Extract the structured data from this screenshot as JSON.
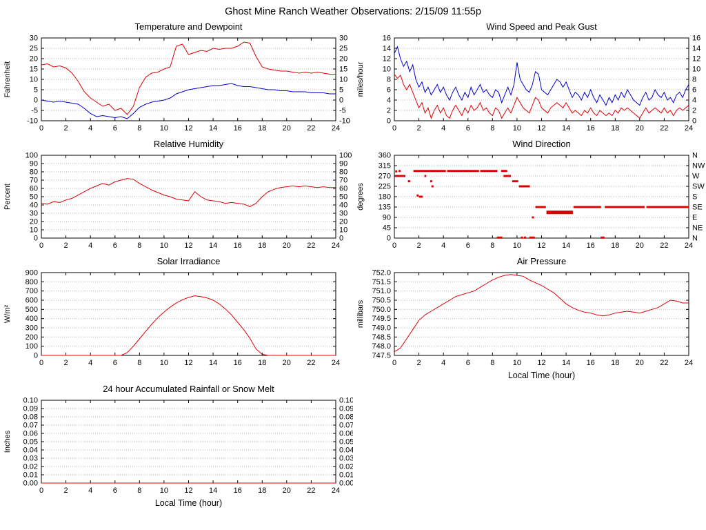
{
  "page_title": "Ghost Mine Ranch Weather Observations: 2/15/09 11:55p",
  "colors": {
    "red": "#dd0000",
    "blue": "#0000cc"
  },
  "chart_data": [
    {
      "id": "temperature_dewpoint",
      "type": "line",
      "title": "Temperature and Dewpoint",
      "ylabel": "Fahrenheit",
      "ylim": [
        -10,
        30
      ],
      "yticks": [
        -10,
        -5,
        0,
        5,
        10,
        15,
        20,
        25,
        30
      ],
      "xlim": [
        0,
        24
      ],
      "xticks": [
        0,
        2,
        4,
        6,
        8,
        10,
        12,
        14,
        16,
        18,
        20,
        22,
        24
      ],
      "right": "same",
      "series": [
        {
          "name": "temperature",
          "color": "#dd0000",
          "x0": 0,
          "dx": 0.5,
          "y": [
            17,
            17.5,
            16,
            16.5,
            15.5,
            13,
            9,
            4,
            1,
            -1,
            -3,
            -2,
            -5,
            -4,
            -7,
            -3,
            6,
            11,
            13,
            13.5,
            15,
            16,
            26,
            27,
            22,
            23,
            24,
            23.5,
            25,
            24.5,
            25,
            25,
            26,
            28,
            27.5,
            21,
            16,
            15,
            14.5,
            14,
            14,
            13.5,
            13,
            13.5,
            13,
            13.5,
            13,
            12.5,
            12.5
          ]
        },
        {
          "name": "dewpoint",
          "color": "#0000cc",
          "x0": 0,
          "dx": 0.5,
          "y": [
            0,
            -0.5,
            -1,
            -0.5,
            -1,
            -1.5,
            -2,
            -4,
            -6.5,
            -8,
            -7.5,
            -8,
            -8.5,
            -8,
            -9,
            -6.5,
            -3.5,
            -2,
            -1,
            -0.5,
            0,
            1,
            3,
            4,
            5,
            5.5,
            6,
            6.5,
            7,
            7,
            7.5,
            8,
            7,
            6.5,
            6.5,
            6,
            5.5,
            5,
            5,
            4.5,
            4.5,
            4,
            4,
            4,
            3.5,
            3.5,
            3.5,
            3,
            3
          ]
        }
      ]
    },
    {
      "id": "wind_speed_gust",
      "type": "line",
      "title": "Wind Speed and Peak Gust",
      "ylabel": "miles/hour",
      "ylim": [
        0,
        16
      ],
      "yticks": [
        0,
        2,
        4,
        6,
        8,
        10,
        12,
        14,
        16
      ],
      "xlim": [
        0,
        24
      ],
      "xticks": [
        0,
        2,
        4,
        6,
        8,
        10,
        12,
        14,
        16,
        18,
        20,
        22,
        24
      ],
      "right": "same",
      "series": [
        {
          "name": "peak_gust",
          "color": "#0000cc",
          "x0": 0,
          "dx": 0.25,
          "y": [
            13,
            14.3,
            12,
            10.5,
            11.5,
            9.5,
            10.8,
            8,
            6.5,
            7.5,
            5.5,
            6.5,
            5,
            6,
            7,
            5.5,
            6.5,
            5,
            4,
            5.5,
            6.5,
            5,
            4,
            5.5,
            4.5,
            6.5,
            5,
            6,
            7,
            5.5,
            6,
            5,
            4.5,
            6,
            5.5,
            3.5,
            5,
            6.5,
            5,
            7,
            11.3,
            8,
            7,
            6,
            5.5,
            7,
            9.5,
            9,
            6,
            5.5,
            5,
            6,
            7,
            8,
            7.5,
            6.5,
            7.5,
            6,
            4.5,
            5.5,
            5,
            4,
            5.5,
            4.5,
            6,
            4.5,
            3.5,
            5,
            4,
            3,
            4.5,
            3.5,
            5,
            4,
            5.5,
            4.5,
            6,
            5,
            4,
            3.5,
            3,
            4.5,
            5.5,
            4,
            4.5,
            6,
            5,
            4.5,
            5.5,
            4,
            4.5,
            3.5,
            5,
            5.5,
            4.5,
            6,
            7
          ]
        },
        {
          "name": "wind_speed",
          "color": "#dd0000",
          "x0": 0,
          "dx": 0.25,
          "y": [
            9,
            8.2,
            8.8,
            7,
            6,
            7,
            5.5,
            4,
            2.5,
            3.5,
            1.5,
            2.5,
            0.5,
            2,
            3,
            1.5,
            2.5,
            1,
            0.5,
            2,
            3,
            2,
            1,
            2.5,
            1.5,
            3,
            2,
            2.5,
            3.5,
            2,
            2.5,
            1.5,
            1,
            2.5,
            2,
            0.5,
            1.5,
            2.5,
            1.5,
            3,
            4.5,
            3.5,
            2.5,
            2,
            1.5,
            3,
            4.5,
            4,
            2.5,
            2,
            1.5,
            2.5,
            3,
            3.5,
            3,
            2.5,
            3.5,
            2.5,
            1.5,
            2,
            1.5,
            1,
            2,
            1.5,
            2.5,
            1.5,
            1,
            2,
            1.5,
            1,
            1.5,
            1,
            2,
            1.5,
            2.5,
            2,
            2.5,
            2,
            1.5,
            1,
            0.5,
            1.5,
            2.5,
            1.5,
            2,
            2.5,
            2,
            1.5,
            2.5,
            1.5,
            2,
            1,
            2,
            2.5,
            2,
            2.5,
            3
          ]
        }
      ]
    },
    {
      "id": "relative_humidity",
      "type": "line",
      "title": "Relative Humidity",
      "ylabel": "Percent",
      "ylim": [
        0,
        100
      ],
      "yticks": [
        0,
        10,
        20,
        30,
        40,
        50,
        60,
        70,
        80,
        90,
        100
      ],
      "xlim": [
        0,
        24
      ],
      "xticks": [
        0,
        2,
        4,
        6,
        8,
        10,
        12,
        14,
        16,
        18,
        20,
        22,
        24
      ],
      "right": "same",
      "series": [
        {
          "name": "humidity",
          "color": "#dd0000",
          "x0": 0,
          "dx": 0.5,
          "y": [
            42,
            41,
            44,
            43,
            46,
            48,
            52,
            56,
            60,
            63,
            66,
            64,
            68,
            70,
            72,
            71,
            66,
            62,
            58,
            55,
            52,
            50,
            47,
            46,
            45,
            56,
            50,
            46,
            45,
            44,
            42,
            43,
            42,
            41,
            38,
            42,
            50,
            56,
            59,
            61,
            62,
            63,
            62,
            63,
            62,
            61,
            62,
            61,
            61
          ]
        }
      ]
    },
    {
      "id": "wind_direction",
      "type": "scatter",
      "title": "Wind Direction",
      "ylabel": "degrees",
      "ylim": [
        0,
        360
      ],
      "yticks": [
        0,
        45,
        90,
        135,
        180,
        225,
        270,
        315,
        360
      ],
      "right_labels": [
        "N",
        "NE",
        "E",
        "SE",
        "S",
        "SW",
        "W",
        "NW",
        "N"
      ],
      "xlim": [
        0,
        24
      ],
      "xticks": [
        0,
        2,
        4,
        6,
        8,
        10,
        12,
        14,
        16,
        18,
        20,
        22,
        24
      ],
      "right": "compass",
      "marker_color": "#dd0000",
      "segments": [
        {
          "x1": 0.05,
          "x2": 0.9,
          "y": 270
        },
        {
          "x1": 0.35,
          "x2": 0.5,
          "y": 292
        },
        {
          "x1": 1.1,
          "x2": 1.3,
          "y": 247
        },
        {
          "x1": 1.55,
          "x2": 4.2,
          "y": 292
        },
        {
          "x1": 4.3,
          "x2": 6.9,
          "y": 292
        },
        {
          "x1": 7.0,
          "x2": 8.4,
          "y": 292
        },
        {
          "x1": 8.7,
          "x2": 9.2,
          "y": 292
        },
        {
          "x1": 2.0,
          "x2": 2.3,
          "y": 180
        },
        {
          "x1": 2.45,
          "x2": 2.6,
          "y": 270
        },
        {
          "x1": 8.35,
          "x2": 8.8,
          "y": 2
        },
        {
          "x1": 8.9,
          "x2": 9.5,
          "y": 270
        },
        {
          "x1": 9.6,
          "x2": 10.1,
          "y": 247
        },
        {
          "x1": 10.15,
          "x2": 11.05,
          "y": 225
        },
        {
          "x1": 11.0,
          "x2": 11.45,
          "y": 2
        },
        {
          "x1": 11.5,
          "x2": 12.35,
          "y": 135
        },
        {
          "x1": 12.4,
          "x2": 14.55,
          "y": 112,
          "w": 5
        },
        {
          "x1": 14.6,
          "x2": 16.85,
          "y": 135
        },
        {
          "x1": 17.15,
          "x2": 20.4,
          "y": 135
        },
        {
          "x1": 20.55,
          "x2": 24,
          "y": 135
        }
      ],
      "points": [
        [
          0.15,
          290
        ],
        [
          3.0,
          247
        ],
        [
          3.1,
          225
        ],
        [
          1.9,
          185
        ],
        [
          10.4,
          2
        ],
        [
          10.65,
          2
        ],
        [
          11.3,
          90
        ],
        [
          16.9,
          2
        ],
        [
          17.05,
          2
        ]
      ]
    },
    {
      "id": "solar_irradiance",
      "type": "line",
      "title": "Solar Irradiance",
      "ylabel": "W/m²",
      "ylim": [
        0,
        900
      ],
      "yticks": [
        0,
        100,
        200,
        300,
        400,
        500,
        600,
        700,
        800,
        900
      ],
      "xlim": [
        0,
        24
      ],
      "xticks": [
        0,
        2,
        4,
        6,
        8,
        10,
        12,
        14,
        16,
        18,
        20,
        22,
        24
      ],
      "right": "none",
      "series": [
        {
          "name": "solar",
          "color": "#dd0000",
          "x0": 0,
          "dx": 0.5,
          "y": [
            0,
            0,
            0,
            0,
            0,
            0,
            0,
            0,
            0,
            0,
            0,
            0,
            0,
            0,
            30,
            100,
            180,
            260,
            340,
            410,
            470,
            525,
            570,
            605,
            630,
            648,
            640,
            625,
            600,
            560,
            505,
            440,
            360,
            280,
            185,
            70,
            12,
            0,
            0,
            0,
            0,
            0,
            0,
            0,
            0,
            0,
            0,
            0,
            0
          ]
        }
      ]
    },
    {
      "id": "air_pressure",
      "type": "line",
      "title": "Air Pressure",
      "ylabel": "millibars",
      "xlabel": "Local Time (hour)",
      "ylim": [
        747.5,
        752.0
      ],
      "yticks": [
        747.5,
        748.0,
        748.5,
        749.0,
        749.5,
        750.0,
        750.5,
        751.0,
        751.5,
        752.0
      ],
      "ytick_labels": [
        "747.5",
        "748.0",
        "748.5",
        "749.0",
        "749.5",
        "750.0",
        "750.5",
        "751.0",
        "751.5",
        "752.0"
      ],
      "xlim": [
        0,
        24
      ],
      "xticks": [
        0,
        2,
        4,
        6,
        8,
        10,
        12,
        14,
        16,
        18,
        20,
        22,
        24
      ],
      "right": "none",
      "series": [
        {
          "name": "pressure",
          "color": "#dd0000",
          "x0": 0,
          "dx": 0.5,
          "y": [
            747.7,
            747.9,
            748.4,
            748.9,
            749.4,
            749.7,
            749.9,
            750.1,
            750.3,
            750.5,
            750.7,
            750.8,
            750.9,
            751.0,
            751.2,
            751.4,
            751.6,
            751.75,
            751.85,
            751.9,
            751.85,
            751.8,
            751.6,
            751.45,
            751.3,
            751.1,
            750.9,
            750.6,
            750.3,
            750.1,
            749.95,
            749.85,
            749.8,
            749.7,
            749.65,
            749.7,
            749.8,
            749.85,
            749.9,
            749.85,
            749.8,
            749.9,
            750.0,
            750.1,
            750.3,
            750.5,
            750.45,
            750.35,
            750.35
          ]
        }
      ]
    },
    {
      "id": "rainfall",
      "type": "line",
      "title": "24 hour Accumulated Rainfall or Snow Melt",
      "ylabel": "Inches",
      "xlabel": "Local Time (hour)",
      "ylim": [
        0,
        0.1
      ],
      "yticks": [
        0,
        0.01,
        0.02,
        0.03,
        0.04,
        0.05,
        0.06,
        0.07,
        0.08,
        0.09,
        0.1
      ],
      "ytick_labels": [
        "0.00",
        "0.01",
        "0.02",
        "0.03",
        "0.04",
        "0.05",
        "0.06",
        "0.07",
        "0.08",
        "0.09",
        "0.10"
      ],
      "xlim": [
        0,
        24
      ],
      "xticks": [
        0,
        2,
        4,
        6,
        8,
        10,
        12,
        14,
        16,
        18,
        20,
        22,
        24
      ],
      "right": "same",
      "series": [
        {
          "name": "rainfall",
          "color": "#dd0000",
          "x0": 0,
          "dx": 0.5,
          "y": [
            0,
            0,
            0,
            0,
            0,
            0,
            0,
            0,
            0,
            0,
            0,
            0,
            0,
            0,
            0,
            0,
            0,
            0,
            0,
            0,
            0,
            0,
            0,
            0,
            0,
            0,
            0,
            0,
            0,
            0,
            0,
            0,
            0,
            0,
            0,
            0,
            0,
            0,
            0,
            0,
            0,
            0,
            0,
            0,
            0,
            0,
            0,
            0,
            0
          ]
        }
      ]
    }
  ]
}
